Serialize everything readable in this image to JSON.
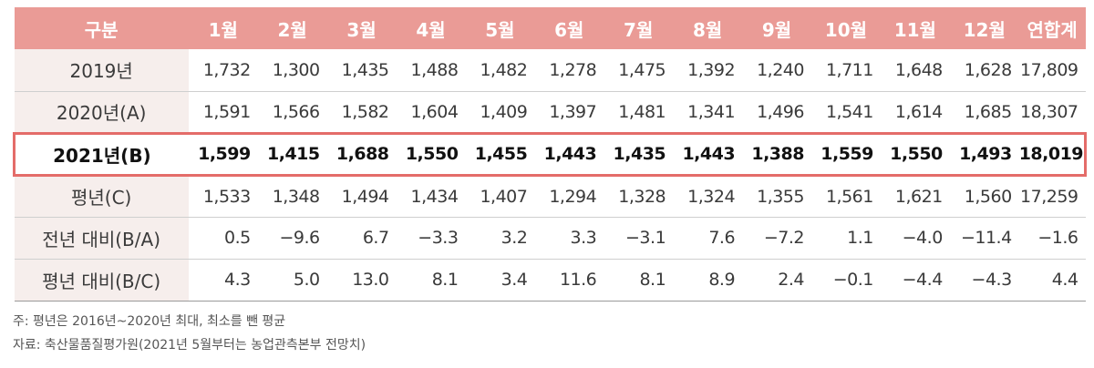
{
  "table": {
    "headers": [
      "구분",
      "1월",
      "2월",
      "3월",
      "4월",
      "5월",
      "6월",
      "7월",
      "8월",
      "9월",
      "10월",
      "11월",
      "12월",
      "연합계"
    ],
    "rows": [
      {
        "label": "2019년",
        "cells": [
          "1,732",
          "1,300",
          "1,435",
          "1,488",
          "1,482",
          "1,278",
          "1,475",
          "1,392",
          "1,240",
          "1,711",
          "1,648",
          "1,628",
          "17,809"
        ]
      },
      {
        "label": "2020년(A)",
        "cells": [
          "1,591",
          "1,566",
          "1,582",
          "1,604",
          "1,409",
          "1,397",
          "1,481",
          "1,341",
          "1,496",
          "1,541",
          "1,614",
          "1,685",
          "18,307"
        ]
      },
      {
        "label": "2021년(B)",
        "cells": [
          "1,599",
          "1,415",
          "1,688",
          "1,550",
          "1,455",
          "1,443",
          "1,435",
          "1,443",
          "1,388",
          "1,559",
          "1,550",
          "1,493",
          "18,019"
        ],
        "highlighted": true
      },
      {
        "label": "평년(C)",
        "cells": [
          "1,533",
          "1,348",
          "1,494",
          "1,434",
          "1,407",
          "1,294",
          "1,328",
          "1,324",
          "1,355",
          "1,561",
          "1,621",
          "1,560",
          "17,259"
        ]
      },
      {
        "label": "전년 대비(B/A)",
        "cells": [
          "0.5",
          "−9.6",
          "6.7",
          "−3.3",
          "3.2",
          "3.3",
          "−3.1",
          "7.6",
          "−7.2",
          "1.1",
          "−4.0",
          "−11.4",
          "−1.6"
        ]
      },
      {
        "label": "평년 대비(B/C)",
        "cells": [
          "4.3",
          "5.0",
          "13.0",
          "8.1",
          "3.4",
          "11.6",
          "8.1",
          "8.9",
          "2.4",
          "−0.1",
          "−4.4",
          "−4.3",
          "4.4"
        ]
      }
    ]
  },
  "notes": {
    "note1": "주: 평년은 2016년~2020년 최대, 최소를 뺀 평균",
    "note2": "자료: 축산물품질평가원(2021년 5월부터는 농업관측본부 전망치)"
  },
  "colors": {
    "header_bg": "#ea9b96",
    "label_bg": "#f6eeec",
    "highlight_border": "#e46c69"
  }
}
